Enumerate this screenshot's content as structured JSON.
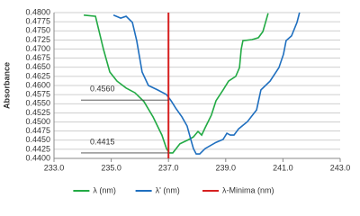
{
  "chart_data": {
    "type": "line",
    "y_label": "Absorbance",
    "xlim": [
      233,
      243
    ],
    "xticks": [
      {
        "value": 233,
        "label": "233.0"
      },
      {
        "value": 235,
        "label": "235.0"
      },
      {
        "value": 237,
        "label": "237.0"
      },
      {
        "value": 239,
        "label": "239.0"
      },
      {
        "value": 241,
        "label": "241.0"
      },
      {
        "value": 243,
        "label": "243.0"
      }
    ],
    "ylim": [
      0.44,
      0.48
    ],
    "yticks": [
      {
        "value": 0.44,
        "label": "0.4400"
      },
      {
        "value": 0.4425,
        "label": "0.4425"
      },
      {
        "value": 0.445,
        "label": "0.4450"
      },
      {
        "value": 0.4475,
        "label": "0.4475"
      },
      {
        "value": 0.45,
        "label": "0.4500"
      },
      {
        "value": 0.4525,
        "label": "0.4525"
      },
      {
        "value": 0.455,
        "label": "0.4550"
      },
      {
        "value": 0.4575,
        "label": "0.4575"
      },
      {
        "value": 0.46,
        "label": "0.4600"
      },
      {
        "value": 0.4625,
        "label": "0.4625"
      },
      {
        "value": 0.465,
        "label": "0.4650"
      },
      {
        "value": 0.4675,
        "label": "0.4675"
      },
      {
        "value": 0.47,
        "label": "0.4700"
      },
      {
        "value": 0.4725,
        "label": "0.4725"
      },
      {
        "value": 0.475,
        "label": "0.4750"
      },
      {
        "value": 0.4775,
        "label": "0.4775"
      },
      {
        "value": 0.48,
        "label": "0.4800"
      }
    ],
    "grid": true,
    "series": [
      {
        "name": "λ (nm)",
        "color": "#22aa44",
        "x": [
          234.04,
          234.45,
          234.54,
          234.73,
          234.95,
          235.2,
          235.52,
          235.83,
          236.14,
          236.46,
          236.77,
          236.93,
          237.03,
          237.15,
          237.4,
          237.72,
          237.87,
          238.03,
          238.16,
          238.28,
          238.5,
          238.66,
          238.91,
          239.1,
          239.35,
          239.48,
          239.54,
          239.6,
          239.92,
          240.14,
          240.3,
          240.48
        ],
        "values": [
          0.4793,
          0.479,
          0.476,
          0.4699,
          0.4637,
          0.4612,
          0.4593,
          0.458,
          0.4556,
          0.4514,
          0.4464,
          0.4427,
          0.4415,
          0.4415,
          0.444,
          0.4452,
          0.4459,
          0.4474,
          0.4464,
          0.4484,
          0.4519,
          0.4558,
          0.4588,
          0.4612,
          0.4625,
          0.4649,
          0.4699,
          0.4723,
          0.4726,
          0.4731,
          0.4748,
          0.4798
        ]
      },
      {
        "name": "λ' (nm)",
        "color": "#1f6fbf",
        "x": [
          235.08,
          235.33,
          235.52,
          235.74,
          235.89,
          236.08,
          236.3,
          236.62,
          236.93,
          237.09,
          237.25,
          237.47,
          237.65,
          237.78,
          237.87,
          237.97,
          238.09,
          238.28,
          238.66,
          238.91,
          239.04,
          239.16,
          239.29,
          239.45,
          239.76,
          240.08,
          240.23,
          240.55,
          240.86,
          241.02,
          241.11,
          241.3,
          241.49,
          241.58
        ],
        "values": [
          0.4793,
          0.4785,
          0.479,
          0.4773,
          0.4723,
          0.4637,
          0.46,
          0.4588,
          0.4575,
          0.4558,
          0.4538,
          0.4514,
          0.4489,
          0.4452,
          0.4427,
          0.4412,
          0.4412,
          0.4427,
          0.4444,
          0.4452,
          0.4469,
          0.4464,
          0.4464,
          0.4481,
          0.4501,
          0.4533,
          0.4588,
          0.4612,
          0.4649,
          0.4686,
          0.4723,
          0.4736,
          0.4773,
          0.48
        ]
      },
      {
        "name": "λ-Minima (nm)",
        "color": "#d62020",
        "x": [
          237,
          237
        ],
        "values": [
          0.44,
          0.48
        ]
      }
    ],
    "annotations": [
      {
        "text": "0.4560",
        "x": 237,
        "y": 0.456
      },
      {
        "text": "0.4415",
        "x": 237,
        "y": 0.4415
      }
    ]
  }
}
